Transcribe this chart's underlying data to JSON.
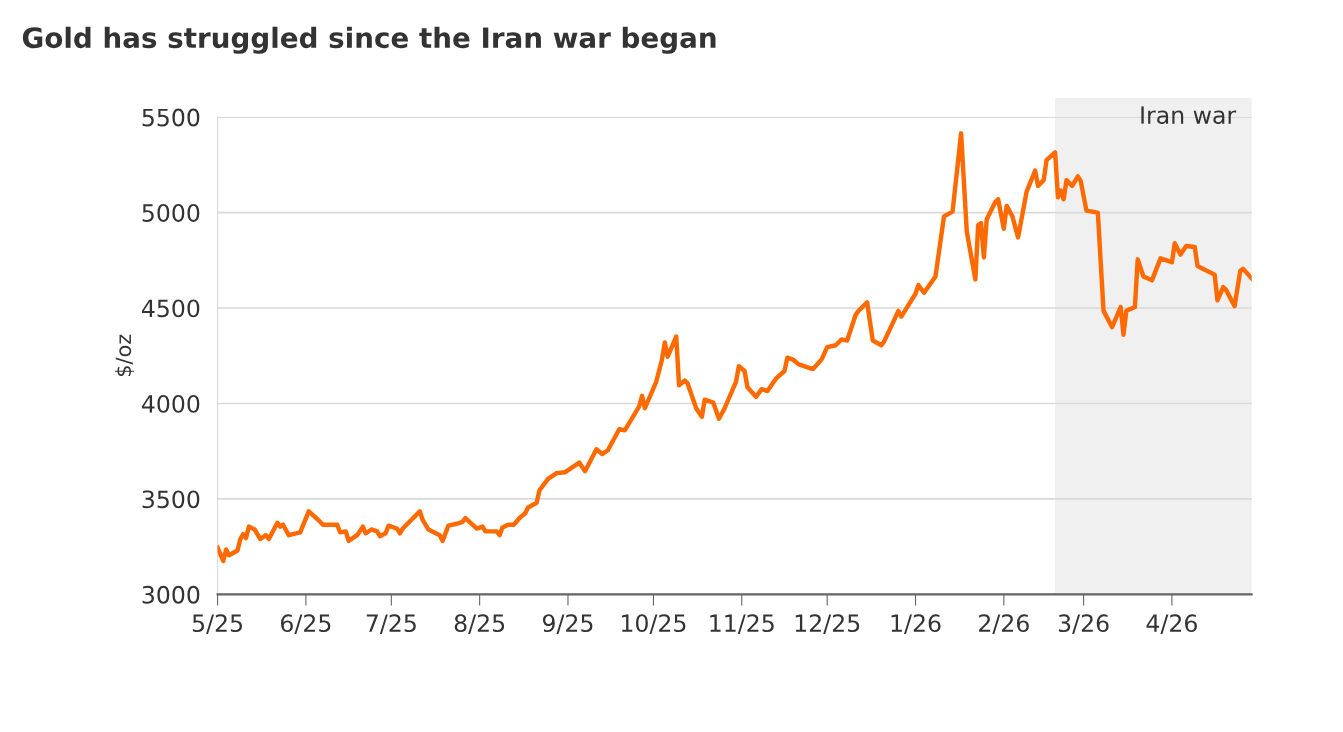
{
  "chart_data": {
    "type": "line",
    "title": "Gold has struggled since the Iran war began",
    "ylabel": "$/oz",
    "x": [
      "2025-05-01",
      "2025-05-03",
      "2025-05-04",
      "2025-05-05",
      "2025-05-08",
      "2025-05-09",
      "2025-05-10",
      "2025-05-11",
      "2025-05-12",
      "2025-05-14",
      "2025-05-16",
      "2025-05-18",
      "2025-05-19",
      "2025-05-22",
      "2025-05-23",
      "2025-05-24",
      "2025-05-26",
      "2025-05-30",
      "2025-06-02",
      "2025-06-05",
      "2025-06-07",
      "2025-06-12",
      "2025-06-13",
      "2025-06-15",
      "2025-06-16",
      "2025-06-19",
      "2025-06-21",
      "2025-06-22",
      "2025-06-24",
      "2025-06-26",
      "2025-06-27",
      "2025-06-29",
      "2025-06-30",
      "2025-07-03",
      "2025-07-04",
      "2025-07-05",
      "2025-07-11",
      "2025-07-12",
      "2025-07-14",
      "2025-07-18",
      "2025-07-19",
      "2025-07-21",
      "2025-07-24",
      "2025-07-26",
      "2025-07-27",
      "2025-07-31",
      "2025-08-02",
      "2025-08-03",
      "2025-08-07",
      "2025-08-08",
      "2025-08-09",
      "2025-08-11",
      "2025-08-13",
      "2025-08-15",
      "2025-08-17",
      "2025-08-18",
      "2025-08-21",
      "2025-08-22",
      "2025-08-23",
      "2025-08-25",
      "2025-08-28",
      "2025-08-31",
      "2025-09-05",
      "2025-09-07",
      "2025-09-11",
      "2025-09-13",
      "2025-09-15",
      "2025-09-19",
      "2025-09-21",
      "2025-09-26",
      "2025-09-27",
      "2025-09-28",
      "2025-10-02",
      "2025-10-04",
      "2025-10-05",
      "2025-10-06",
      "2025-10-09",
      "2025-10-10",
      "2025-10-12",
      "2025-10-13",
      "2025-10-16",
      "2025-10-18",
      "2025-10-19",
      "2025-10-22",
      "2025-10-24",
      "2025-10-26",
      "2025-10-30",
      "2025-10-31",
      "2025-11-02",
      "2025-11-03",
      "2025-11-06",
      "2025-11-08",
      "2025-11-10",
      "2025-11-13",
      "2025-11-16",
      "2025-11-17",
      "2025-11-19",
      "2025-11-21",
      "2025-11-26",
      "2025-11-29",
      "2025-12-01",
      "2025-12-04",
      "2025-12-06",
      "2025-12-08",
      "2025-12-11",
      "2025-12-12",
      "2025-12-15",
      "2025-12-17",
      "2025-12-20",
      "2025-12-21",
      "2025-12-26",
      "2025-12-27",
      "2026-01-01",
      "2026-01-02",
      "2026-01-04",
      "2026-01-08",
      "2026-01-11",
      "2026-01-14",
      "2026-01-17",
      "2026-01-19",
      "2026-01-22",
      "2026-01-23",
      "2026-01-24",
      "2026-01-25",
      "2026-01-26",
      "2026-01-29",
      "2026-01-30",
      "2026-02-01",
      "2026-02-02",
      "2026-02-04",
      "2026-02-06",
      "2026-02-09",
      "2026-02-12",
      "2026-02-13",
      "2026-02-15",
      "2026-02-16",
      "2026-02-19",
      "2026-02-20",
      "2026-02-21",
      "2026-02-22",
      "2026-02-23",
      "2026-02-25",
      "2026-02-27",
      "2026-02-28",
      "2026-03-02",
      "2026-03-06",
      "2026-03-08",
      "2026-03-11",
      "2026-03-14",
      "2026-03-15",
      "2026-03-16",
      "2026-03-19",
      "2026-03-20",
      "2026-03-22",
      "2026-03-25",
      "2026-03-28",
      "2026-04-01",
      "2026-04-02",
      "2026-04-04",
      "2026-04-06",
      "2026-04-09",
      "2026-04-10",
      "2026-04-12",
      "2026-04-16",
      "2026-04-17",
      "2026-04-19",
      "2026-04-20",
      "2026-04-23",
      "2026-04-25",
      "2026-04-26",
      "2026-04-29"
    ],
    "series": [
      {
        "color": "#ff6a00",
        "values": [
          3245,
          3175,
          3235,
          3205,
          3230,
          3290,
          3315,
          3295,
          3355,
          3340,
          3290,
          3310,
          3290,
          3375,
          3355,
          3365,
          3310,
          3325,
          3435,
          3395,
          3365,
          3365,
          3325,
          3330,
          3280,
          3310,
          3355,
          3320,
          3340,
          3330,
          3305,
          3320,
          3360,
          3345,
          3320,
          3345,
          3435,
          3390,
          3340,
          3310,
          3280,
          3360,
          3370,
          3380,
          3400,
          3345,
          3355,
          3330,
          3330,
          3310,
          3350,
          3365,
          3365,
          3400,
          3425,
          3455,
          3480,
          3545,
          3565,
          3605,
          3635,
          3640,
          3690,
          3645,
          3760,
          3735,
          3755,
          3865,
          3860,
          3985,
          4040,
          3975,
          4115,
          4230,
          4320,
          4245,
          4350,
          4095,
          4120,
          4105,
          3975,
          3930,
          4020,
          4005,
          3920,
          3975,
          4115,
          4195,
          4170,
          4085,
          4035,
          4075,
          4065,
          4130,
          4170,
          4240,
          4230,
          4205,
          4180,
          4230,
          4295,
          4305,
          4335,
          4330,
          4465,
          4485,
          4530,
          4330,
          4305,
          4325,
          4485,
          4455,
          4575,
          4620,
          4580,
          4665,
          4980,
          5005,
          5415,
          4900,
          4650,
          4935,
          4945,
          4765,
          4965,
          5055,
          5070,
          4915,
          5035,
          4980,
          4870,
          5110,
          5220,
          5140,
          5170,
          5275,
          5315,
          5080,
          5115,
          5070,
          5170,
          5140,
          5190,
          5165,
          5010,
          5000,
          4485,
          4400,
          4505,
          4360,
          4485,
          4505,
          4755,
          4665,
          4645,
          4760,
          4740,
          4840,
          4780,
          4825,
          4820,
          4720,
          4705,
          4675,
          4540,
          4610,
          4595,
          4510,
          4695,
          4705,
          4655
        ]
      }
    ],
    "xlim": [
      "2025-05-01",
      "2026-04-29"
    ],
    "xticks": [
      {
        "value": "2025-05-01",
        "label": "5/25"
      },
      {
        "value": "2025-06-01",
        "label": "6/25"
      },
      {
        "value": "2025-07-01",
        "label": "7/25"
      },
      {
        "value": "2025-08-01",
        "label": "8/25"
      },
      {
        "value": "2025-09-01",
        "label": "9/25"
      },
      {
        "value": "2025-10-01",
        "label": "10/25"
      },
      {
        "value": "2025-11-01",
        "label": "11/25"
      },
      {
        "value": "2025-12-01",
        "label": "12/25"
      },
      {
        "value": "2026-01-01",
        "label": "1/26"
      },
      {
        "value": "2026-02-01",
        "label": "2/26"
      },
      {
        "value": "2026-03-01",
        "label": "3/26"
      },
      {
        "value": "2026-04-01",
        "label": "4/26"
      }
    ],
    "ylim": [
      3000,
      5500
    ],
    "yticks": [
      3000,
      3500,
      4000,
      4500,
      5000,
      5500
    ],
    "bands": [
      {
        "axis": "x",
        "from": "2026-02-19",
        "to": "2026-04-29",
        "label": "Iran war",
        "color": "#f0f0f0"
      }
    ],
    "grid": "y",
    "marker": "none",
    "line_style": "solid"
  }
}
